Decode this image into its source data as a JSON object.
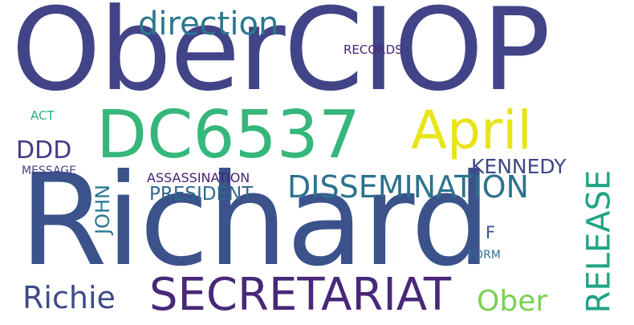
{
  "words": {
    "obercio": {
      "text": "OberCIOP",
      "color": "#414487"
    },
    "richard": {
      "text": "Richard",
      "color": "#3b528b"
    },
    "dc6537": {
      "text": "DC6537",
      "color": "#35b779"
    },
    "april": {
      "text": "April",
      "color": "#e8e419"
    },
    "direction": {
      "text": "direction",
      "color": "#2a788e"
    },
    "secretariat": {
      "text": "SECRETARIAT",
      "color": "#482878"
    },
    "dissemination": {
      "text": "DISSEMINATION",
      "color": "#2c728e"
    },
    "richie": {
      "text": "Richie",
      "color": "#3e4a89"
    },
    "ober": {
      "text": "Ober",
      "color": "#7ad151"
    },
    "ddd": {
      "text": "DDD",
      "color": "#433e85"
    },
    "kennedy": {
      "text": "KENNEDY",
      "color": "#3f4788"
    },
    "president": {
      "text": "PRESIDENT",
      "color": "#31688e"
    },
    "assassination": {
      "text": "ASSASSINATION",
      "color": "#482173"
    },
    "message": {
      "text": "MESSAGE",
      "color": "#414487"
    },
    "records": {
      "text": "RECORDS",
      "color": "#482475"
    },
    "act": {
      "text": "ACT",
      "color": "#29af7f"
    },
    "f": {
      "text": "F",
      "color": "#3b528b"
    },
    "form": {
      "text": "FORM",
      "color": "#2c728e"
    },
    "release": {
      "text": "RELEASE",
      "color": "#20a486"
    },
    "john": {
      "text": "JOHN",
      "color": "#2a788e"
    }
  }
}
